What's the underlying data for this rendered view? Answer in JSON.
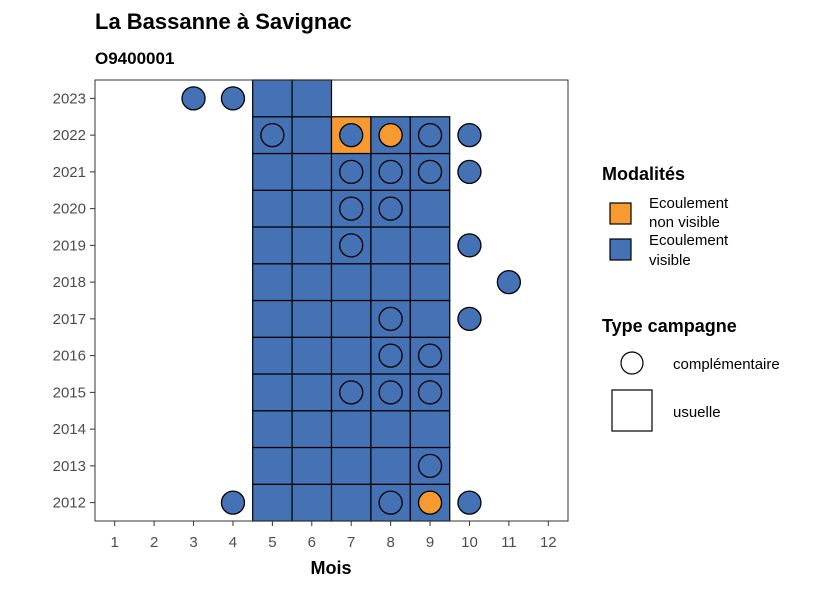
{
  "chart_data": {
    "type": "heatmap",
    "title": "La Bassanne à Savignac",
    "subtitle": "O9400001",
    "xlabel": "Mois",
    "ylabel": "",
    "x_ticks": [
      1,
      2,
      3,
      4,
      5,
      6,
      7,
      8,
      9,
      10,
      11,
      12
    ],
    "y_ticks": [
      2012,
      2013,
      2014,
      2015,
      2016,
      2017,
      2018,
      2019,
      2020,
      2021,
      2022,
      2023
    ],
    "xlim": [
      0.5,
      12.5
    ],
    "ylim": [
      2011.5,
      2023.5
    ],
    "grid": false,
    "colors": {
      "visible": "#4472b4",
      "non_visible": "#f79a32"
    },
    "legend": {
      "placement": "right",
      "modalites_title": "Modalités",
      "modalites": [
        {
          "key": "non_visible",
          "line1": "Ecoulement",
          "line2": "non visible",
          "color": "#f79a32"
        },
        {
          "key": "visible",
          "line1": "Ecoulement",
          "line2": "visible",
          "color": "#4472b4"
        }
      ],
      "campagne_title": "Type campagne",
      "campagne": [
        {
          "shape": "circle",
          "label": "complémentaire"
        },
        {
          "shape": "square",
          "label": "usuelle"
        }
      ]
    },
    "usuelle": [
      {
        "year": 2012,
        "months": [
          5,
          6,
          7,
          8,
          9
        ],
        "non_visible": []
      },
      {
        "year": 2013,
        "months": [
          5,
          6,
          7,
          8,
          9
        ],
        "non_visible": []
      },
      {
        "year": 2014,
        "months": [
          5,
          6,
          7,
          8,
          9
        ],
        "non_visible": []
      },
      {
        "year": 2015,
        "months": [
          5,
          6,
          7,
          8,
          9
        ],
        "non_visible": []
      },
      {
        "year": 2016,
        "months": [
          5,
          6,
          7,
          8,
          9
        ],
        "non_visible": []
      },
      {
        "year": 2017,
        "months": [
          5,
          6,
          7,
          8,
          9
        ],
        "non_visible": []
      },
      {
        "year": 2018,
        "months": [
          5,
          6,
          7,
          8,
          9
        ],
        "non_visible": []
      },
      {
        "year": 2019,
        "months": [
          5,
          6,
          7,
          8,
          9
        ],
        "non_visible": []
      },
      {
        "year": 2020,
        "months": [
          5,
          6,
          7,
          8,
          9
        ],
        "non_visible": []
      },
      {
        "year": 2021,
        "months": [
          5,
          6,
          7,
          8,
          9
        ],
        "non_visible": []
      },
      {
        "year": 2022,
        "months": [
          5,
          6,
          7,
          8,
          9
        ],
        "non_visible": [
          7
        ]
      },
      {
        "year": 2023,
        "months": [
          5,
          6
        ],
        "non_visible": []
      }
    ],
    "complementaire": [
      {
        "year": 2023,
        "month": 3,
        "modalite": "visible"
      },
      {
        "year": 2023,
        "month": 4,
        "modalite": "visible"
      },
      {
        "year": 2022,
        "month": 5,
        "modalite": "visible"
      },
      {
        "year": 2022,
        "month": 7,
        "modalite": "visible"
      },
      {
        "year": 2022,
        "month": 8,
        "modalite": "non_visible"
      },
      {
        "year": 2022,
        "month": 9,
        "modalite": "visible"
      },
      {
        "year": 2022,
        "month": 10,
        "modalite": "visible"
      },
      {
        "year": 2021,
        "month": 7,
        "modalite": "visible"
      },
      {
        "year": 2021,
        "month": 8,
        "modalite": "visible"
      },
      {
        "year": 2021,
        "month": 9,
        "modalite": "visible"
      },
      {
        "year": 2021,
        "month": 10,
        "modalite": "visible"
      },
      {
        "year": 2020,
        "month": 7,
        "modalite": "visible"
      },
      {
        "year": 2020,
        "month": 8,
        "modalite": "visible"
      },
      {
        "year": 2019,
        "month": 7,
        "modalite": "visible"
      },
      {
        "year": 2019,
        "month": 10,
        "modalite": "visible"
      },
      {
        "year": 2018,
        "month": 11,
        "modalite": "visible"
      },
      {
        "year": 2017,
        "month": 8,
        "modalite": "visible"
      },
      {
        "year": 2017,
        "month": 10,
        "modalite": "visible"
      },
      {
        "year": 2016,
        "month": 8,
        "modalite": "visible"
      },
      {
        "year": 2016,
        "month": 9,
        "modalite": "visible"
      },
      {
        "year": 2015,
        "month": 7,
        "modalite": "visible"
      },
      {
        "year": 2015,
        "month": 8,
        "modalite": "visible"
      },
      {
        "year": 2015,
        "month": 9,
        "modalite": "visible"
      },
      {
        "year": 2013,
        "month": 9,
        "modalite": "visible"
      },
      {
        "year": 2012,
        "month": 4,
        "modalite": "visible"
      },
      {
        "year": 2012,
        "month": 8,
        "modalite": "visible"
      },
      {
        "year": 2012,
        "month": 9,
        "modalite": "non_visible"
      },
      {
        "year": 2012,
        "month": 10,
        "modalite": "visible"
      }
    ]
  }
}
